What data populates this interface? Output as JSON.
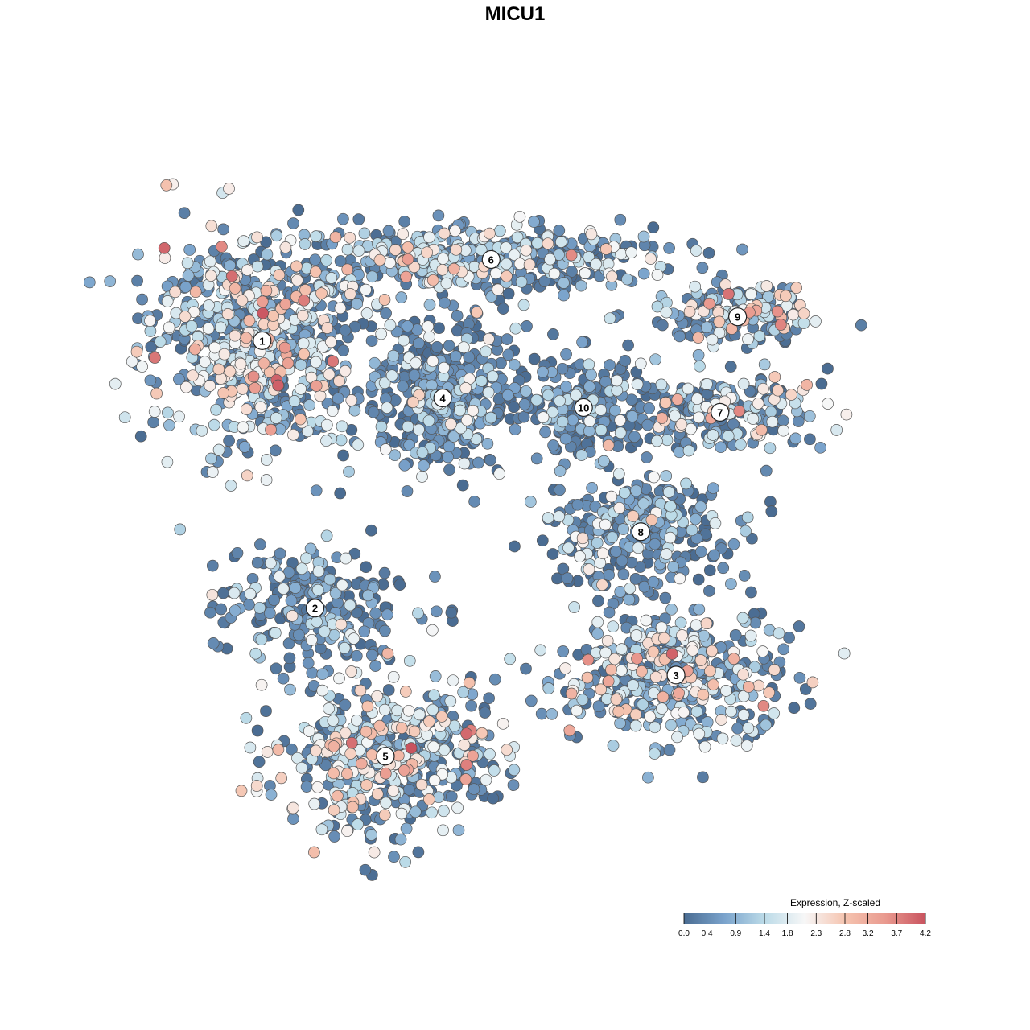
{
  "colors": {
    "scale": [
      "#4a6c92",
      "#7aa3cc",
      "#bcdbe8",
      "#f7f7f7",
      "#f5c4b0",
      "#e99a8f",
      "#c9535f"
    ],
    "point_stroke": "#555555",
    "cluster_label_fill": "#ffffff"
  },
  "chart_data": {
    "type": "scatter",
    "title": "MICU1",
    "xlabel": "",
    "ylabel": "",
    "grid": false,
    "axes": false,
    "legend": {
      "title": "Expression, Z-scaled",
      "placement": "bottom-right",
      "min": 0.0,
      "max": 4.2,
      "ticks": [
        "0.0",
        "0.4",
        "0.9",
        "1.4",
        "1.8",
        "2.3",
        "2.8",
        "3.2",
        "3.7",
        "4.2"
      ]
    },
    "clusters": [
      {
        "label": "1",
        "center": [
          -6.2,
          3.4
        ],
        "spread": [
          3.2,
          2.6
        ],
        "n": 720,
        "expr_mean": 1.55
      },
      {
        "label": "2",
        "center": [
          -5.0,
          -2.2
        ],
        "spread": [
          2.8,
          1.5
        ],
        "n": 230,
        "expr_mean": 0.6
      },
      {
        "label": "3",
        "center": [
          3.2,
          -3.6
        ],
        "spread": [
          2.8,
          1.7
        ],
        "n": 450,
        "expr_mean": 1.45
      },
      {
        "label": "4",
        "center": [
          -2.1,
          2.2
        ],
        "spread": [
          1.9,
          1.8
        ],
        "n": 380,
        "expr_mean": 0.45
      },
      {
        "label": "5",
        "center": [
          -3.4,
          -5.3
        ],
        "spread": [
          3.0,
          1.8
        ],
        "n": 520,
        "expr_mean": 1.7
      },
      {
        "label": "6",
        "center": [
          -1.0,
          5.1
        ],
        "spread": [
          4.6,
          0.9
        ],
        "n": 420,
        "expr_mean": 1.2
      },
      {
        "label": "7",
        "center": [
          4.2,
          1.9
        ],
        "spread": [
          2.9,
          1.0
        ],
        "n": 220,
        "expr_mean": 1.35
      },
      {
        "label": "8",
        "center": [
          2.4,
          -0.6
        ],
        "spread": [
          2.5,
          1.4
        ],
        "n": 300,
        "expr_mean": 0.45
      },
      {
        "label": "9",
        "center": [
          4.6,
          3.9
        ],
        "spread": [
          2.2,
          0.8
        ],
        "n": 170,
        "expr_mean": 1.4
      },
      {
        "label": "10",
        "center": [
          1.1,
          2.0
        ],
        "spread": [
          1.7,
          1.3
        ],
        "n": 200,
        "expr_mean": 0.4
      }
    ],
    "xlim": [
      -8.5,
      8.5
    ],
    "ylim": [
      -8.0,
      7.5
    ]
  }
}
